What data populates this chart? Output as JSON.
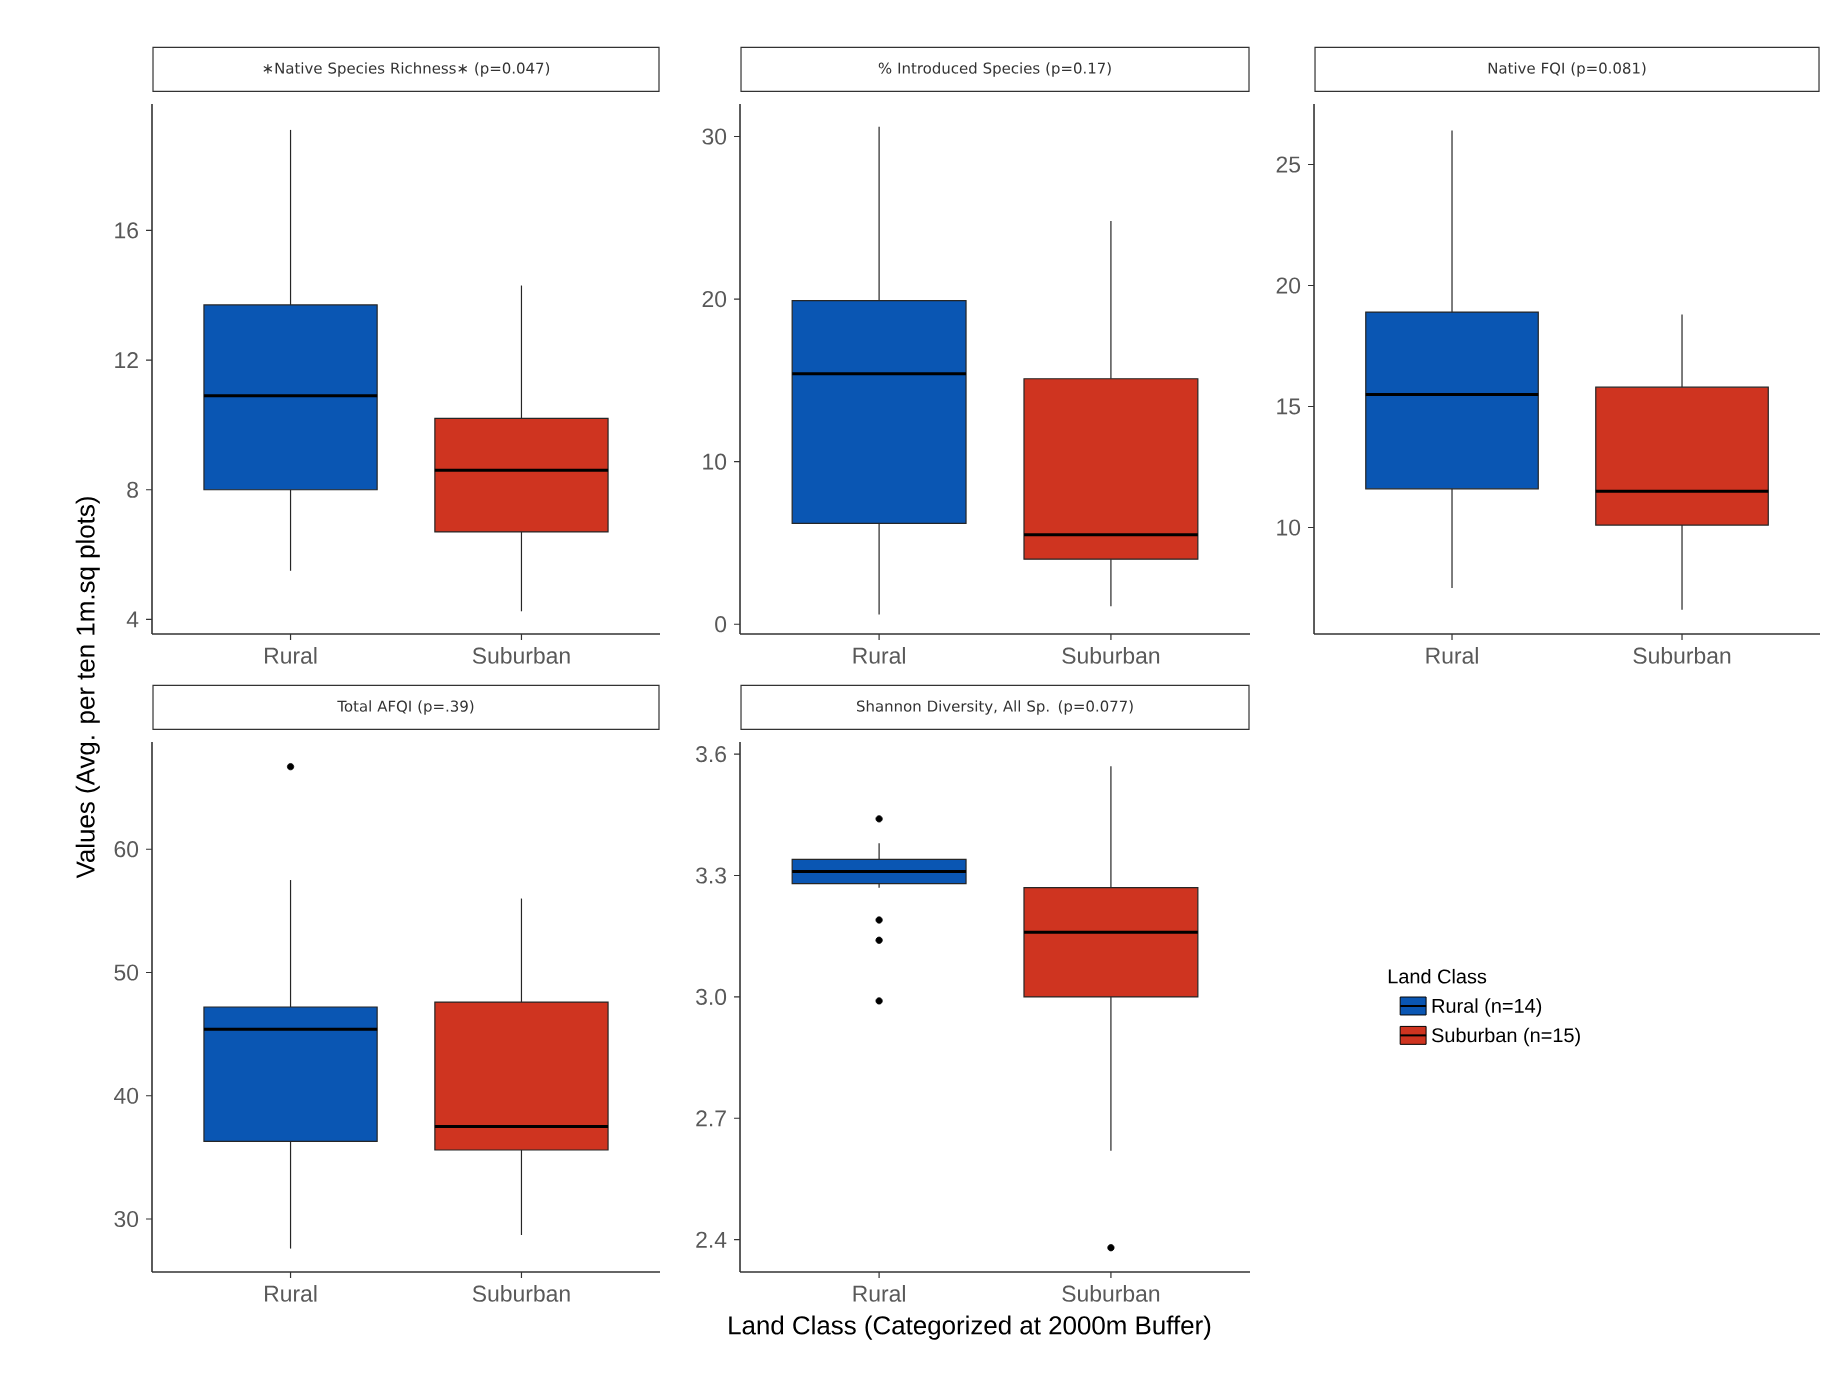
{
  "chart_data": [
    {
      "type": "box",
      "title": "∗Native Species Richness∗ (p=0.047)",
      "ylabel": "Values (Avg. per ten 1m.sq plots)",
      "categories": [
        "Rural",
        "Suburban"
      ],
      "ylim": [
        3.55,
        19.9
      ],
      "yticks": [
        4,
        8,
        12,
        16
      ],
      "series": [
        {
          "color": "#0a56b3",
          "boxes": [
            {
              "low": 5.5,
              "q1": 8.0,
              "median": 10.9,
              "q3": 13.7,
              "high": 19.1
            },
            null
          ]
        },
        {
          "color": "#cf3420",
          "boxes": [
            null,
            {
              "low": 4.25,
              "q1": 6.7,
              "median": 8.6,
              "q3": 10.2,
              "high": 14.3
            }
          ]
        }
      ]
    },
    {
      "type": "box",
      "title": "% Introduced Species (p=0.17)",
      "categories": [
        "Rural",
        "Suburban"
      ],
      "ylim": [
        -0.6,
        32
      ],
      "yticks": [
        0,
        10,
        20,
        30
      ],
      "series": [
        {
          "color": "#0a56b3",
          "boxes": [
            {
              "low": 0.6,
              "q1": 6.2,
              "median": 15.4,
              "q3": 19.9,
              "high": 30.6
            },
            null
          ]
        },
        {
          "color": "#cf3420",
          "boxes": [
            null,
            {
              "low": 1.1,
              "q1": 4.0,
              "median": 5.5,
              "q3": 15.1,
              "high": 24.8
            }
          ]
        }
      ]
    },
    {
      "type": "box",
      "title": "Native FQI (p=0.081)",
      "categories": [
        "Rural",
        "Suburban"
      ],
      "ylim": [
        5.6,
        27.5
      ],
      "yticks": [
        10,
        15,
        20,
        25
      ],
      "series": [
        {
          "color": "#0a56b3",
          "boxes": [
            {
              "low": 7.5,
              "q1": 11.6,
              "median": 15.5,
              "q3": 18.9,
              "high": 26.4
            },
            null
          ]
        },
        {
          "color": "#cf3420",
          "boxes": [
            null,
            {
              "low": 6.6,
              "q1": 10.1,
              "median": 11.5,
              "q3": 15.8,
              "high": 18.8
            }
          ]
        }
      ]
    },
    {
      "type": "box",
      "title": "Total AFQI (p=.39)",
      "categories": [
        "Rural",
        "Suburban"
      ],
      "ylim": [
        25.7,
        68.7
      ],
      "yticks": [
        30,
        40,
        50,
        60
      ],
      "series": [
        {
          "color": "#0a56b3",
          "boxes": [
            {
              "low": 27.6,
              "q1": 36.3,
              "median": 45.4,
              "q3": 47.2,
              "high": 57.5,
              "outliers": [
                66.7
              ]
            },
            null
          ]
        },
        {
          "color": "#cf3420",
          "boxes": [
            null,
            {
              "low": 28.7,
              "q1": 35.6,
              "median": 37.5,
              "q3": 47.6,
              "high": 56.0
            }
          ]
        }
      ]
    },
    {
      "type": "box",
      "title": "Shannon Diversity, All Sp. (p=0.077)",
      "xlabel": "Land Class (Categorized at 2000m Buffer)",
      "legend_title": "Land Class",
      "legend": "right",
      "categories": [
        "Rural",
        "Suburban"
      ],
      "ylim": [
        2.32,
        3.63
      ],
      "yticks": [
        2.4,
        2.7,
        {
          "value": 3.0,
          "label": "3.0"
        },
        3.3,
        3.6
      ],
      "series": [
        {
          "name": "Rural (n=14)",
          "color": "#0a56b3",
          "boxes": [
            {
              "low": 3.27,
              "q1": 3.28,
              "median": 3.31,
              "q3": 3.34,
              "high": 3.38,
              "outliers": [
                3.44,
                3.19,
                3.14,
                2.99
              ]
            },
            null
          ]
        },
        {
          "name": "Suburban (n=15)",
          "color": "#cf3420",
          "boxes": [
            null,
            {
              "low": 2.62,
              "q1": 3.0,
              "median": 3.16,
              "q3": 3.27,
              "high": 3.57,
              "outliers": [
                2.38
              ]
            }
          ]
        }
      ]
    }
  ]
}
